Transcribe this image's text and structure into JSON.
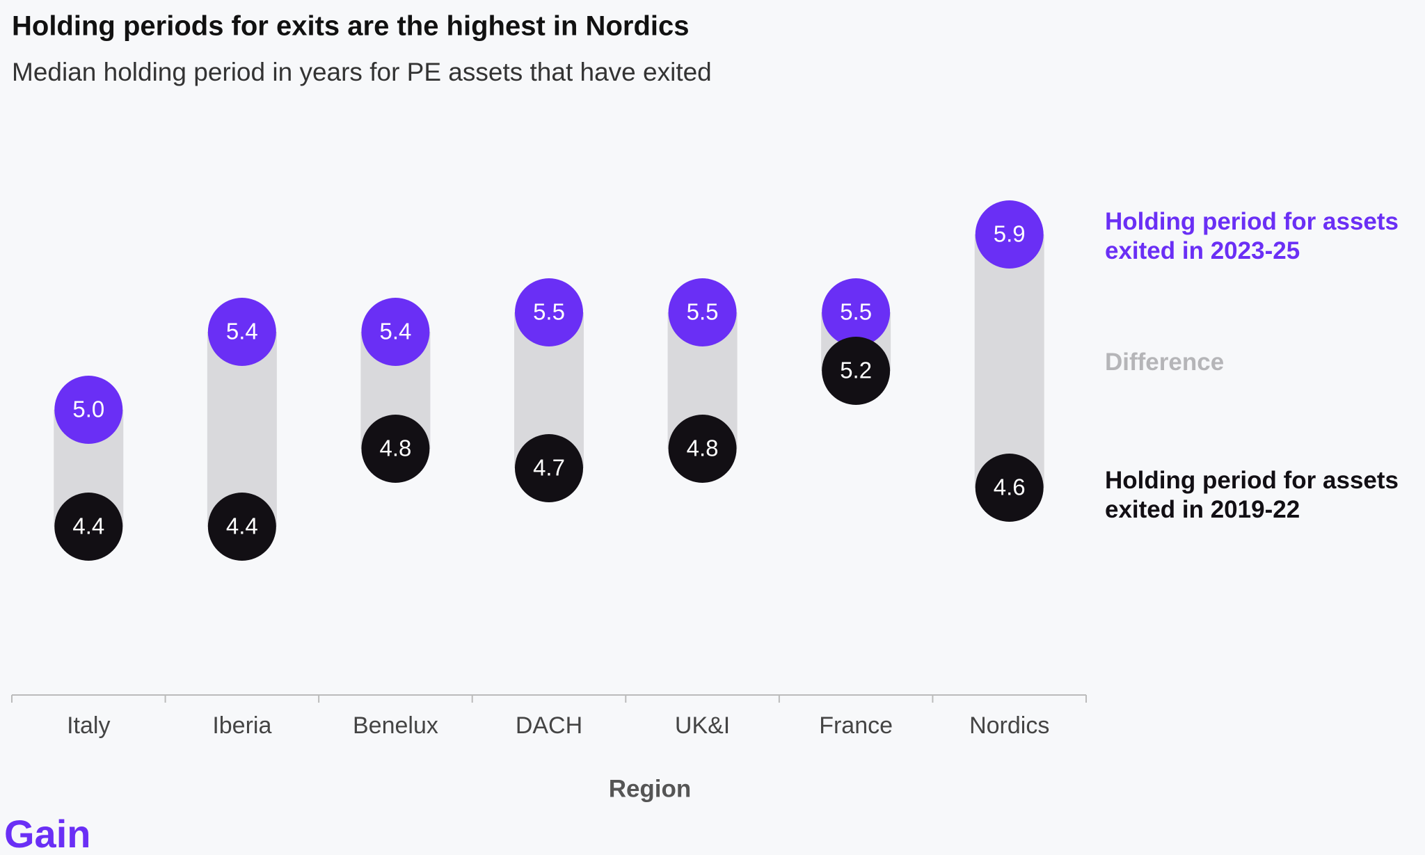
{
  "chart_data": {
    "type": "dumbbell",
    "title": "Holding periods for exits are the highest in Nordics",
    "subtitle": "Median holding period in years for PE assets that have exited",
    "x_label": "Region",
    "categories": [
      "Italy",
      "Iberia",
      "Benelux",
      "DACH",
      "UK&I",
      "France",
      "Nordics"
    ],
    "series": [
      {
        "name": "Holding period for assets exited in 2023-25",
        "color": "#6a2ff5",
        "values": [
          5.0,
          5.4,
          5.4,
          5.5,
          5.5,
          5.5,
          5.9
        ],
        "value_labels": [
          "5.0",
          "5.4",
          "5.4",
          "5.5",
          "5.5",
          "5.5",
          "5.9"
        ]
      },
      {
        "name": "Holding period for assets exited in 2019-22",
        "color": "#120f14",
        "values": [
          4.4,
          4.4,
          4.8,
          4.7,
          4.8,
          5.2,
          4.6
        ],
        "value_labels": [
          "4.4",
          "4.4",
          "4.8",
          "4.7",
          "4.8",
          "5.2",
          "4.6"
        ]
      }
    ],
    "range_name": "Difference",
    "range_color": "#d9d9dc",
    "brand": "Gain"
  }
}
